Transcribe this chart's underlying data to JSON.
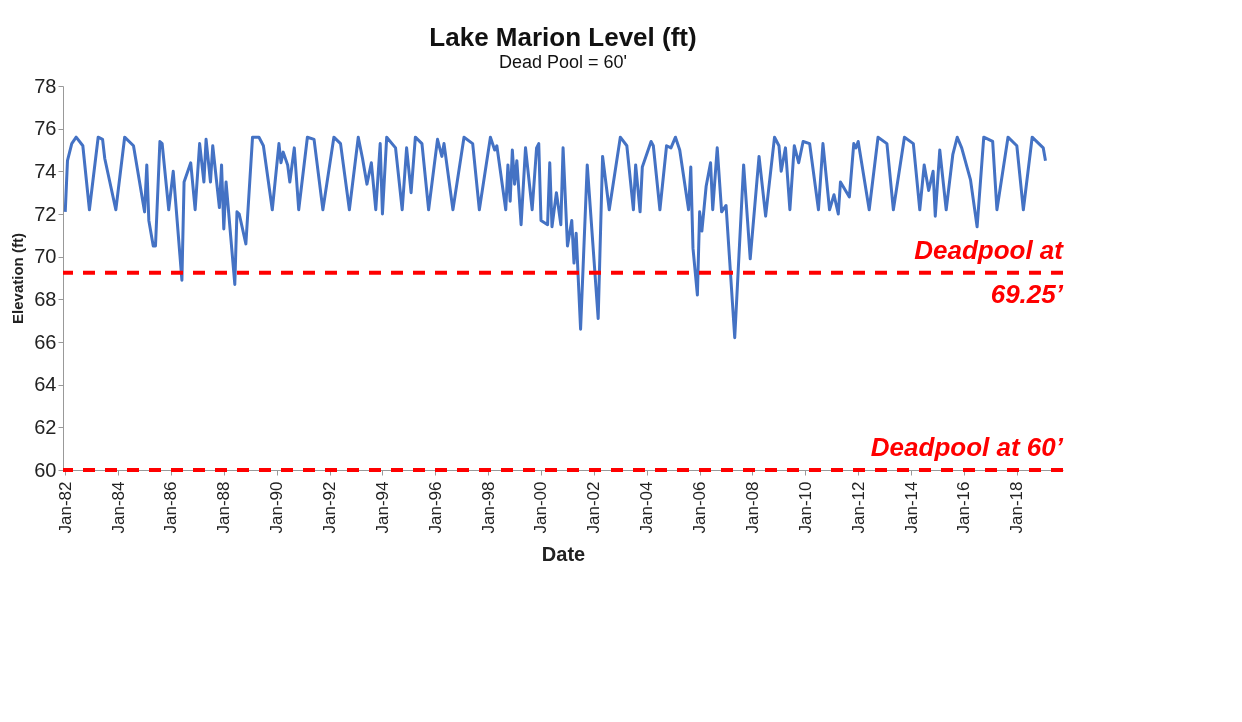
{
  "chart_data": {
    "type": "line",
    "title": "Lake Marion Level (ft)",
    "subtitle": "Dead Pool = 60'",
    "xlabel": "Date",
    "ylabel": "Elevation (ft)",
    "x": [
      "1982-01",
      "1982-02",
      "1982-04",
      "1982-06",
      "1982-09",
      "1982-12",
      "1983-04",
      "1983-06",
      "1983-07",
      "1983-12",
      "1984-04",
      "1984-08",
      "1985-01",
      "1985-02",
      "1985-03",
      "1985-05",
      "1985-06",
      "1985-08",
      "1985-09",
      "1985-12",
      "1986-02",
      "1986-06",
      "1986-07",
      "1986-10",
      "1986-12",
      "1987-02",
      "1987-04",
      "1987-05",
      "1987-07",
      "1987-08",
      "1987-11",
      "1987-12",
      "1988-01",
      "1988-02",
      "1988-06",
      "1988-07",
      "1988-08",
      "1988-11",
      "1989-02",
      "1989-05",
      "1989-07",
      "1989-11",
      "1990-02",
      "1990-03",
      "1990-04",
      "1990-06",
      "1990-07",
      "1990-09",
      "1990-11",
      "1991-03",
      "1991-06",
      "1991-10",
      "1992-03",
      "1992-06",
      "1992-10",
      "1993-02",
      "1993-04",
      "1993-06",
      "1993-08",
      "1993-10",
      "1993-12",
      "1994-01",
      "1994-03",
      "1994-07",
      "1994-10",
      "1994-12",
      "1995-02",
      "1995-04",
      "1995-07",
      "1995-10",
      "1996-02",
      "1996-04",
      "1996-05",
      "1996-09",
      "1997-02",
      "1997-06",
      "1997-09",
      "1998-02",
      "1998-04",
      "1998-05",
      "1998-09",
      "1998-10",
      "1998-11",
      "1998-12",
      "1999-01",
      "1999-02",
      "1999-04",
      "1999-06",
      "1999-09",
      "1999-11",
      "1999-12",
      "2000-01",
      "2000-04",
      "2000-05",
      "2000-06",
      "2000-08",
      "2000-10",
      "2000-11",
      "2001-01",
      "2001-03",
      "2001-04",
      "2001-05",
      "2001-07",
      "2001-10",
      "2002-03",
      "2002-05",
      "2002-08",
      "2003-01",
      "2003-04",
      "2003-07",
      "2003-08",
      "2003-10",
      "2003-11",
      "2004-03",
      "2004-04",
      "2004-07",
      "2004-10",
      "2004-12",
      "2005-02",
      "2005-04",
      "2005-08",
      "2005-09",
      "2005-10",
      "2005-12",
      "2006-01",
      "2006-02",
      "2006-04",
      "2006-06",
      "2006-07",
      "2006-09",
      "2006-11",
      "2007-01",
      "2007-05",
      "2007-09",
      "2007-12",
      "2008-04",
      "2008-07",
      "2008-11",
      "2009-01",
      "2009-02",
      "2009-04",
      "2009-06",
      "2009-08",
      "2009-10",
      "2009-12",
      "2010-03",
      "2010-07",
      "2010-09",
      "2010-12",
      "2011-02",
      "2011-04",
      "2011-05",
      "2011-09",
      "2011-11",
      "2011-12",
      "2012-01",
      "2012-06",
      "2012-10",
      "2013-02",
      "2013-05",
      "2013-10",
      "2014-02",
      "2014-05",
      "2014-07",
      "2014-09",
      "2014-11",
      "2014-12",
      "2015-02",
      "2015-05",
      "2015-08",
      "2015-10",
      "2015-12",
      "2016-04",
      "2016-07",
      "2016-10",
      "2017-02",
      "2017-04",
      "2017-09",
      "2018-01",
      "2018-04",
      "2018-08",
      "2018-11",
      "2019-01",
      "2019-02"
    ],
    "series": [
      {
        "color": "#4472c4",
        "values": [
          72.1,
          74.5,
          75.3,
          75.6,
          75.2,
          72.2,
          75.6,
          75.5,
          74.6,
          72.2,
          75.6,
          75.2,
          72.1,
          74.3,
          71.7,
          70.5,
          70.5,
          75.4,
          75.3,
          72.2,
          74.0,
          68.9,
          73.5,
          74.4,
          72.2,
          75.3,
          73.5,
          75.5,
          73.5,
          75.2,
          72.3,
          74.3,
          71.3,
          73.5,
          68.7,
          72.1,
          72.0,
          70.6,
          75.6,
          75.6,
          75.2,
          72.2,
          75.3,
          74.4,
          74.9,
          74.3,
          73.5,
          75.1,
          72.2,
          75.6,
          75.5,
          72.2,
          75.6,
          75.3,
          72.2,
          75.6,
          74.6,
          73.4,
          74.4,
          72.2,
          75.3,
          72.0,
          75.6,
          75.1,
          72.2,
          75.1,
          73.0,
          75.6,
          75.3,
          72.2,
          75.5,
          74.7,
          75.3,
          72.2,
          75.6,
          75.3,
          72.2,
          75.6,
          75.0,
          75.2,
          72.2,
          74.3,
          72.6,
          75.0,
          73.4,
          74.5,
          71.5,
          75.1,
          72.2,
          75.1,
          75.3,
          71.7,
          71.5,
          74.4,
          71.4,
          73.0,
          71.5,
          75.1,
          70.5,
          71.7,
          69.7,
          71.1,
          66.6,
          74.3,
          67.1,
          74.7,
          72.2,
          75.6,
          75.2,
          72.2,
          74.3,
          72.1,
          74.2,
          75.4,
          75.2,
          72.2,
          75.2,
          75.1,
          75.6,
          75.0,
          72.2,
          74.2,
          70.4,
          68.2,
          72.1,
          71.2,
          73.3,
          74.4,
          72.2,
          75.1,
          72.1,
          72.4,
          66.2,
          74.3,
          69.9,
          74.7,
          71.9,
          75.6,
          75.2,
          74.0,
          75.1,
          72.2,
          75.2,
          74.4,
          75.4,
          75.3,
          72.2,
          75.3,
          72.2,
          72.9,
          72.0,
          73.5,
          72.8,
          75.3,
          75.1,
          75.4,
          72.2,
          75.6,
          75.3,
          72.2,
          75.6,
          75.3,
          72.2,
          74.3,
          73.1,
          74.0,
          71.9,
          75.0,
          72.2,
          74.8,
          75.6,
          75.1,
          73.6,
          71.4,
          75.6,
          75.4,
          72.2,
          75.6,
          75.2,
          72.2,
          75.6,
          75.3,
          75.1,
          74.5
        ]
      }
    ],
    "xlim": [
      "1981-12",
      "2019-10"
    ],
    "xticks": [
      {
        "value": "1982-01",
        "label": "Jan-82"
      },
      {
        "value": "1984-01",
        "label": "Jan-84"
      },
      {
        "value": "1986-01",
        "label": "Jan-86"
      },
      {
        "value": "1988-01",
        "label": "Jan-88"
      },
      {
        "value": "1990-01",
        "label": "Jan-90"
      },
      {
        "value": "1992-01",
        "label": "Jan-92"
      },
      {
        "value": "1994-01",
        "label": "Jan-94"
      },
      {
        "value": "1996-01",
        "label": "Jan-96"
      },
      {
        "value": "1998-01",
        "label": "Jan-98"
      },
      {
        "value": "2000-01",
        "label": "Jan-00"
      },
      {
        "value": "2002-01",
        "label": "Jan-02"
      },
      {
        "value": "2004-01",
        "label": "Jan-04"
      },
      {
        "value": "2006-01",
        "label": "Jan-06"
      },
      {
        "value": "2008-01",
        "label": "Jan-08"
      },
      {
        "value": "2010-01",
        "label": "Jan-10"
      },
      {
        "value": "2012-01",
        "label": "Jan-12"
      },
      {
        "value": "2014-01",
        "label": "Jan-14"
      },
      {
        "value": "2016-01",
        "label": "Jan-16"
      },
      {
        "value": "2018-01",
        "label": "Jan-18"
      }
    ],
    "ylim": [
      60,
      78
    ],
    "yticks": [
      60,
      62,
      64,
      66,
      68,
      70,
      72,
      74,
      76,
      78
    ],
    "ref_lines": [
      {
        "axis": "y",
        "value": 69.25,
        "label": "Deadpool at 69.25’",
        "color": "#ff0000",
        "line_style": "dashed"
      },
      {
        "axis": "y",
        "value": 60,
        "label": "Deadpool at 60’",
        "color": "#ff0000",
        "line_style": "dashed"
      }
    ],
    "grid": false,
    "marker": "none",
    "line_style": "solid"
  }
}
